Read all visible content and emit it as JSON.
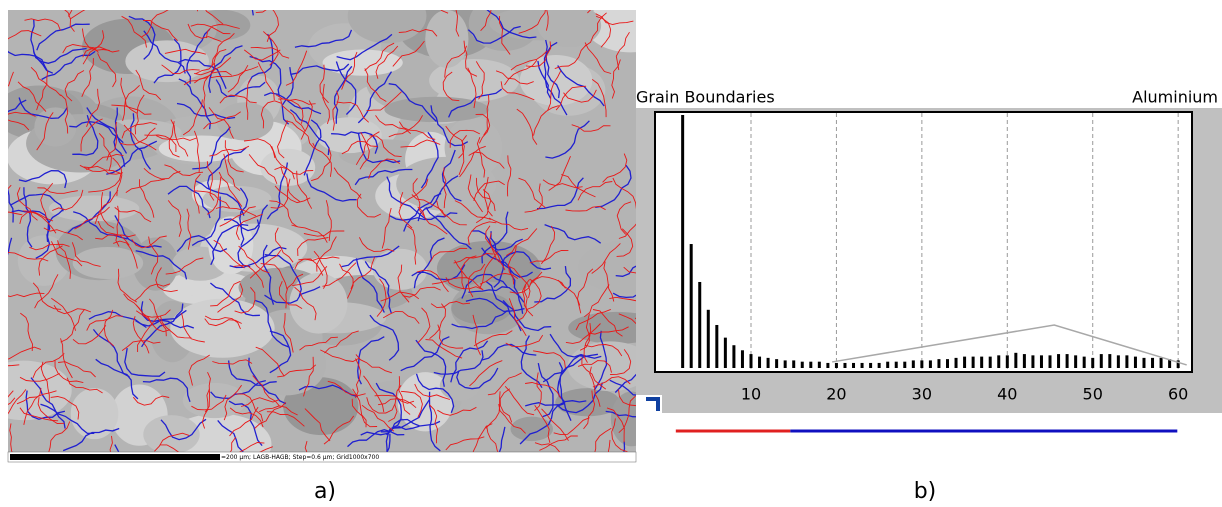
{
  "micrograph": {
    "scale_text": "=200 µm; LAGB-HAGB; Step=0.6 µm; Grid1000x700",
    "caption": "a)"
  },
  "chart_data": {
    "type": "bar",
    "caption": "b)",
    "title": "Grain Boundaries",
    "material": "Aluminium",
    "color": "#000000",
    "x": [
      2,
      3,
      4,
      5,
      6,
      7,
      8,
      9,
      10,
      11,
      12,
      13,
      14,
      15,
      16,
      17,
      18,
      19,
      20,
      21,
      22,
      23,
      24,
      25,
      26,
      27,
      28,
      29,
      30,
      31,
      32,
      33,
      34,
      35,
      36,
      37,
      38,
      39,
      40,
      41,
      42,
      43,
      44,
      45,
      46,
      47,
      48,
      49,
      50,
      51,
      52,
      53,
      54,
      55,
      56,
      57,
      58,
      59,
      60
    ],
    "values": [
      100,
      49,
      34,
      23,
      17,
      12,
      9,
      7,
      5.5,
      4.5,
      4,
      3.5,
      3,
      3,
      2.5,
      2.5,
      2.5,
      2,
      2,
      2,
      2,
      2,
      2,
      2,
      2.5,
      2.5,
      2.5,
      3,
      3,
      3,
      3.5,
      3.5,
      4,
      4.5,
      4.5,
      4.5,
      4.5,
      5,
      5,
      6,
      5.5,
      5,
      5,
      5,
      5.5,
      5.5,
      5,
      4.5,
      4,
      5.5,
      5.5,
      5,
      5,
      4.5,
      4,
      4,
      4,
      3.5,
      3
    ],
    "reference_line": {
      "color": "#a8a8a8",
      "x": [
        19.5,
        45.5,
        61
      ],
      "values": [
        2.4,
        17,
        1.2
      ]
    },
    "boundary_classes": [
      {
        "color": "#e02020",
        "from": 1.2,
        "to": 14.6
      },
      {
        "color": "#1010c0",
        "from": 14.6,
        "to": 59.9
      }
    ],
    "xlim": [
      -0.3,
      60.8
    ],
    "ylim": [
      0,
      100
    ],
    "xticks": [
      10,
      20,
      30,
      40,
      50,
      60
    ],
    "grid": true
  }
}
